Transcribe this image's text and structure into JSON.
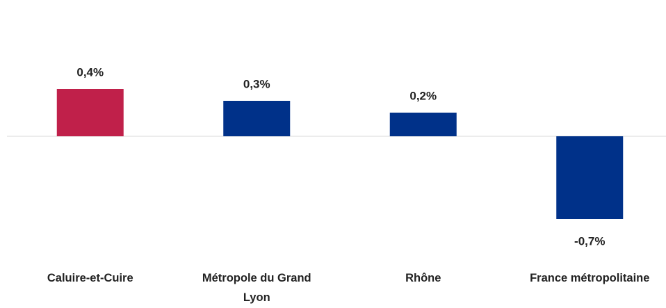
{
  "chart_data": {
    "type": "bar",
    "categories": [
      "Caluire-et-Cuire",
      "Métropole du Grand Lyon",
      "Rhône",
      "France métropolitaine"
    ],
    "values": [
      0.4,
      0.3,
      0.2,
      -0.7
    ],
    "value_labels": [
      "0,4%",
      "0,3%",
      "0,2%",
      "-0,7%"
    ],
    "colors": [
      "#c0204a",
      "#003189",
      "#003189",
      "#003189"
    ]
  }
}
